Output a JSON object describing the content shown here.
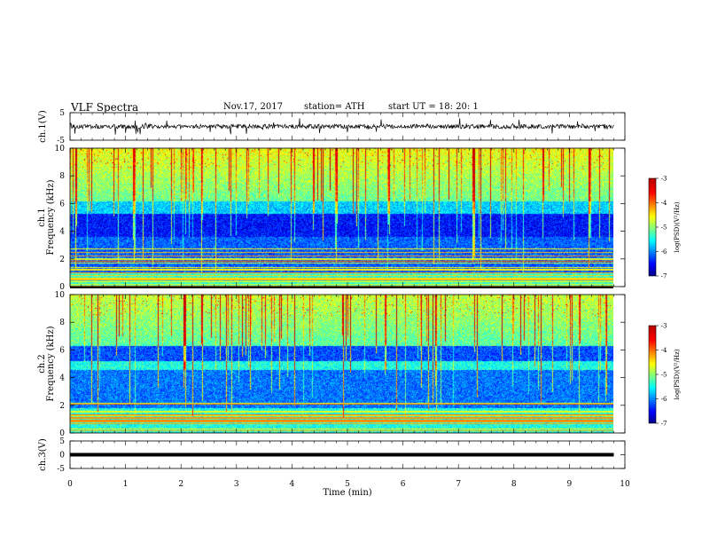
{
  "header": {
    "title": "VLF  Spectra",
    "date": "Nov.17, 2017",
    "station": "station= ATH",
    "start": "start  UT  =   18: 20: 1"
  },
  "chart_data": [
    {
      "type": "line",
      "panel": "ch1-waveform",
      "ylabel": "ch.1(V)",
      "ylim": [
        -5,
        5
      ],
      "yticks": [
        5,
        -5
      ],
      "xlim": [
        0,
        10
      ],
      "description_values": {
        "baseline": 0,
        "typical_amplitude": 1,
        "spike_amplitude": 3
      }
    },
    {
      "type": "heatmap",
      "panel": "ch1-spectrogram",
      "ylabel": "ch.1\nFrequency  (kHz)",
      "ylabel_lines": [
        "ch.1",
        "Frequency  (kHz)"
      ],
      "ylim": [
        0,
        10
      ],
      "yticks": [
        0,
        2,
        4,
        6,
        8,
        10
      ],
      "xlim": [
        0,
        10
      ],
      "colorbar": {
        "label": "log(PSD)(V²/Hz)",
        "range": [
          -7,
          -3
        ],
        "ticks": [
          -3,
          -4,
          -5,
          -6,
          -7
        ]
      }
    },
    {
      "type": "heatmap",
      "panel": "ch2-spectrogram",
      "ylabel_lines": [
        "ch.2",
        "Frequency  (kHz)"
      ],
      "ylim": [
        0,
        10
      ],
      "yticks": [
        0,
        2,
        4,
        6,
        8,
        10
      ],
      "xlim": [
        0,
        10
      ],
      "colorbar": {
        "label": "log(PSD)(V²/Hz)",
        "range": [
          -7,
          -3
        ],
        "ticks": [
          -3,
          -4,
          -5,
          -6,
          -7
        ]
      }
    },
    {
      "type": "line",
      "panel": "ch3-waveform",
      "ylabel": "ch.3(V)",
      "ylim": [
        -5,
        5
      ],
      "yticks": [
        5,
        0,
        -5
      ],
      "xlim": [
        0,
        10
      ],
      "xlabel": "Time  (min)",
      "xticks": [
        0,
        1,
        2,
        3,
        4,
        5,
        6,
        7,
        8,
        9,
        10
      ]
    }
  ],
  "colors": {
    "jet": [
      "#000080",
      "#0000ff",
      "#00a0ff",
      "#00ffff",
      "#80ff80",
      "#ffff00",
      "#ff8000",
      "#ff0000",
      "#ffffff"
    ]
  }
}
